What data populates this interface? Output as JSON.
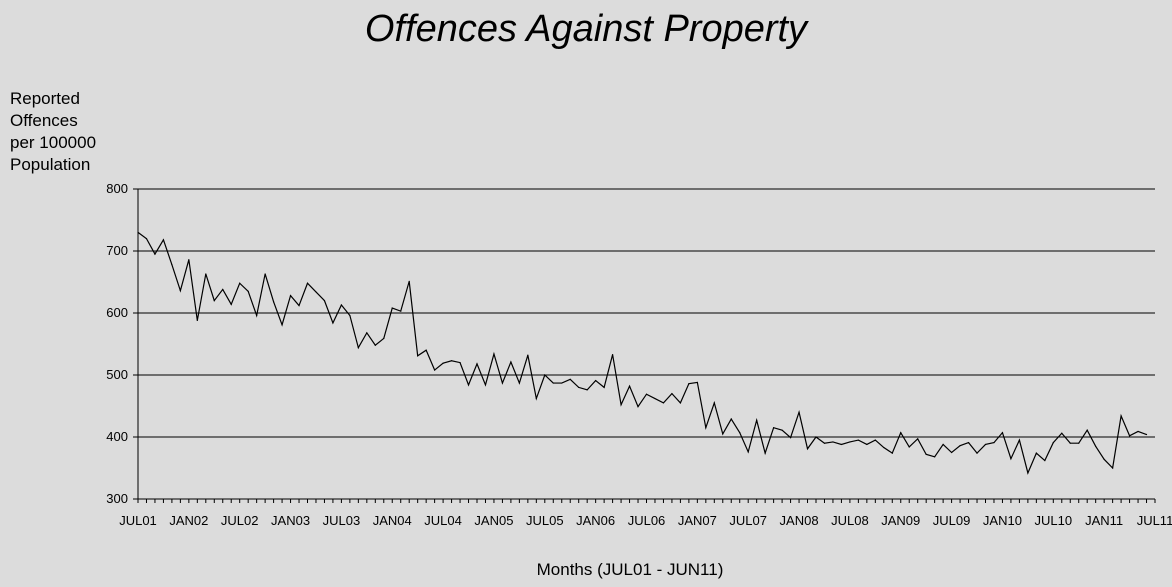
{
  "chart_data": {
    "type": "line",
    "title": "Offences Against Property",
    "ylabel": "Reported\nOffences\nper 100000\nPopulation",
    "xlabel": "Months (JUL01 - JUN11)",
    "ylim": [
      300,
      800
    ],
    "yticks": [
      300,
      400,
      500,
      600,
      700,
      800
    ],
    "grid": true,
    "x_tick_labels": [
      "JUL01",
      "JAN02",
      "JUL02",
      "JAN03",
      "JUL03",
      "JAN04",
      "JUL04",
      "JAN05",
      "JUL05",
      "JAN06",
      "JUL06",
      "JAN07",
      "JUL07",
      "JAN08",
      "JUL08",
      "JAN09",
      "JUL09",
      "JAN10",
      "JUL10",
      "JAN11",
      "JUL11"
    ],
    "series": [
      {
        "values": [
          730,
          720,
          695,
          718,
          678,
          636,
          686,
          588,
          663,
          620,
          638,
          614,
          648,
          635,
          596,
          663,
          618,
          581,
          628,
          612,
          648,
          634,
          620,
          584,
          613,
          596,
          544,
          568,
          548,
          559,
          608,
          603,
          651,
          531,
          540,
          508,
          519,
          523,
          520,
          484,
          518,
          484,
          534,
          487,
          521,
          487,
          532,
          462,
          500,
          487,
          487,
          493,
          480,
          476,
          491,
          480,
          533,
          452,
          482,
          449,
          469,
          462,
          455,
          470,
          455,
          486,
          488,
          415,
          455,
          405,
          429,
          407,
          376,
          427,
          374,
          415,
          411,
          399,
          440,
          381,
          400,
          390,
          392,
          388,
          392,
          395,
          388,
          395,
          383,
          374,
          407,
          384,
          397,
          372,
          368,
          388,
          375,
          386,
          391,
          374,
          388,
          391,
          407,
          365,
          395,
          342,
          374,
          362,
          391,
          406,
          390,
          390,
          411,
          385,
          364,
          350,
          434,
          402,
          409,
          404
        ]
      }
    ]
  }
}
